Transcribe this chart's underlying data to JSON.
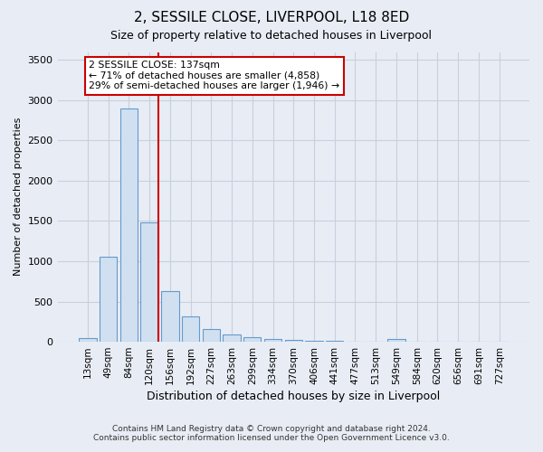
{
  "title": "2, SESSILE CLOSE, LIVERPOOL, L18 8ED",
  "subtitle": "Size of property relative to detached houses in Liverpool",
  "xlabel": "Distribution of detached houses by size in Liverpool",
  "ylabel": "Number of detached properties",
  "footnote": "Contains HM Land Registry data © Crown copyright and database right 2024.\nContains public sector information licensed under the Open Government Licence v3.0.",
  "bar_labels": [
    "13sqm",
    "49sqm",
    "84sqm",
    "120sqm",
    "156sqm",
    "192sqm",
    "227sqm",
    "263sqm",
    "299sqm",
    "334sqm",
    "370sqm",
    "406sqm",
    "441sqm",
    "477sqm",
    "513sqm",
    "549sqm",
    "584sqm",
    "620sqm",
    "656sqm",
    "691sqm",
    "727sqm"
  ],
  "bar_values": [
    50,
    1060,
    2900,
    1480,
    630,
    320,
    160,
    90,
    55,
    40,
    25,
    15,
    10,
    5,
    5,
    30,
    5,
    0,
    0,
    0,
    0
  ],
  "bar_color": "#d0e0f0",
  "bar_edge_color": "#6699cc",
  "ylim": [
    0,
    3600
  ],
  "yticks": [
    0,
    500,
    1000,
    1500,
    2000,
    2500,
    3000,
    3500
  ],
  "red_line_x": 3.425,
  "annotation_text": "2 SESSILE CLOSE: 137sqm\n← 71% of detached houses are smaller (4,858)\n29% of semi-detached houses are larger (1,946) →",
  "bg_color": "#e8edf5",
  "grid_color": "#c8d0dc"
}
